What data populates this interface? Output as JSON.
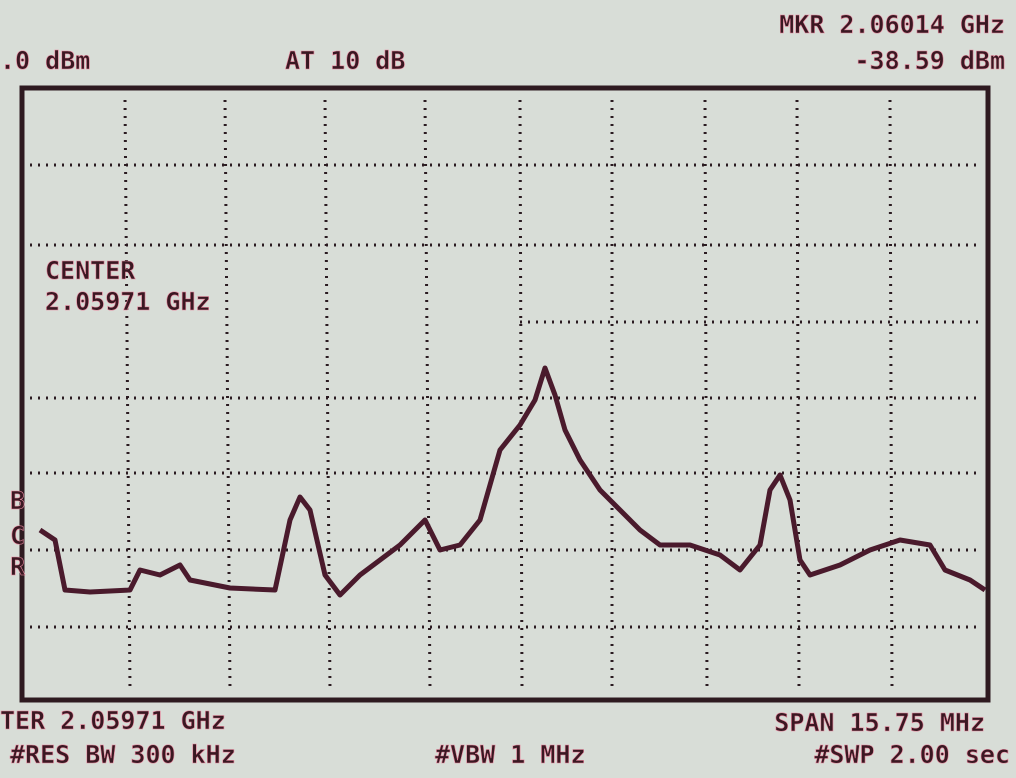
{
  "header": {
    "ref_level": ".0 dBm",
    "attenuation": "AT 10 dB",
    "marker_freq": "MKR 2.06014 GHz",
    "marker_level": "-38.59 dBm"
  },
  "screen": {
    "center_label": "CENTER",
    "center_value": "2.05971 GHz",
    "side_letters": [
      "B",
      "C",
      "R"
    ]
  },
  "footer": {
    "center": "TER 2.05971 GHz",
    "res_bw": "#RES BW 300 kHz",
    "vbw": "#VBW 1 MHz",
    "span": "SPAN 15.75 MHz",
    "sweep": "#SWP 2.00 sec"
  }
}
